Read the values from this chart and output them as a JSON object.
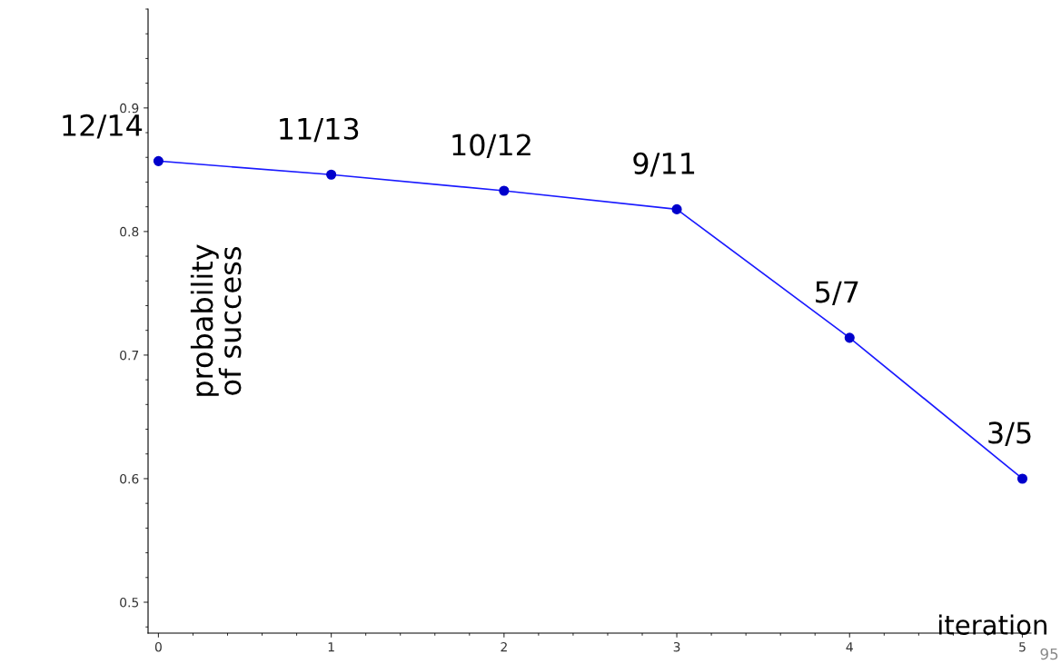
{
  "chart_data": {
    "type": "line",
    "xlabel": "iteration",
    "ylabel": "probability\nof success",
    "x": [
      0,
      1,
      2,
      3,
      4,
      5
    ],
    "series": [
      {
        "color": "#1a1aff",
        "values": [
          0.857,
          0.846,
          0.833,
          0.818,
          0.714,
          0.6
        ],
        "value_labels": [
          "12/14",
          "11/13",
          "10/12",
          "9/11",
          "5/7",
          "3/5"
        ]
      }
    ],
    "xlim": [
      -0.06,
      5.05
    ],
    "ylim": [
      0.475,
      0.98
    ],
    "xticks": [
      0,
      1,
      2,
      3,
      4,
      5
    ],
    "yticks": [
      0.5,
      0.6,
      0.7,
      0.8,
      0.9
    ],
    "marker": "circle",
    "line_style": "solid",
    "grid": false,
    "legend": false,
    "annotations": [
      "95"
    ]
  }
}
